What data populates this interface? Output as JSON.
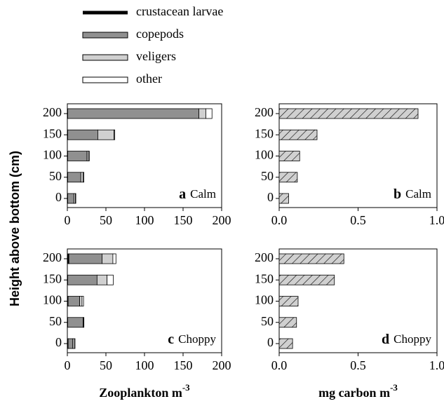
{
  "chart_data": [
    {
      "type": "stacked-barh",
      "panel_label": "a",
      "condition": "Calm",
      "ylabel": "Height above bottom (cm)",
      "categories": [
        "0",
        "50",
        "100",
        "150",
        "200"
      ],
      "xlim": [
        0,
        200
      ],
      "xticks": [
        0,
        50,
        100,
        150,
        200
      ],
      "series": [
        {
          "name": "crustacean larvae",
          "color": "#000000",
          "values": [
            0.5,
            0.5,
            0.5,
            0.5,
            0.5
          ]
        },
        {
          "name": "copepods",
          "color": "#909090",
          "values": [
            8,
            17,
            25,
            39,
            170
          ]
        },
        {
          "name": "veligers",
          "color": "#d0d0d0",
          "values": [
            2,
            3,
            2,
            21,
            9
          ]
        },
        {
          "name": "other",
          "color": "#ffffff",
          "values": [
            0.5,
            1,
            1,
            1,
            8
          ]
        }
      ]
    },
    {
      "type": "barh",
      "panel_label": "b",
      "condition": "Calm",
      "categories": [
        "0",
        "50",
        "100",
        "150",
        "200"
      ],
      "xlim": [
        0,
        1
      ],
      "xticks": [
        {
          "value": 0,
          "label": "0.0"
        },
        {
          "value": 0.5,
          "label": "0.5"
        },
        {
          "value": 1,
          "label": "1.0"
        }
      ],
      "values": [
        0.06,
        0.115,
        0.13,
        0.24,
        0.88
      ],
      "color": "#d0d0d0",
      "hatch": true
    },
    {
      "type": "stacked-barh",
      "panel_label": "c",
      "condition": "Choppy",
      "categories": [
        "0",
        "50",
        "100",
        "150",
        "200"
      ],
      "xlim": [
        0,
        200
      ],
      "xticks": [
        0,
        50,
        100,
        150,
        200
      ],
      "xlabel": "Zooplankton m",
      "xlabel_exponent": "-3",
      "series": [
        {
          "color": "#000000",
          "values": [
            1,
            0.5,
            1,
            0.5,
            2
          ]
        },
        {
          "color": "#909090",
          "values": [
            6,
            20,
            15,
            38,
            43
          ]
        },
        {
          "color": "#d0d0d0",
          "values": [
            2,
            0.5,
            3,
            13,
            14
          ]
        },
        {
          "color": "#ffffff",
          "values": [
            1,
            0.5,
            2,
            8,
            4
          ]
        }
      ]
    },
    {
      "type": "barh",
      "panel_label": "d",
      "condition": "Choppy",
      "categories": [
        "0",
        "50",
        "100",
        "150",
        "200"
      ],
      "xlim": [
        0,
        1
      ],
      "xticks": [
        {
          "value": 0,
          "label": "0.0"
        },
        {
          "value": 0.5,
          "label": "0.5"
        },
        {
          "value": 1,
          "label": "1.0"
        }
      ],
      "xlabel": "mg carbon m",
      "xlabel_exponent": "-3",
      "values": [
        0.085,
        0.11,
        0.12,
        0.35,
        0.41
      ],
      "color": "#d0d0d0",
      "hatch": true
    }
  ]
}
